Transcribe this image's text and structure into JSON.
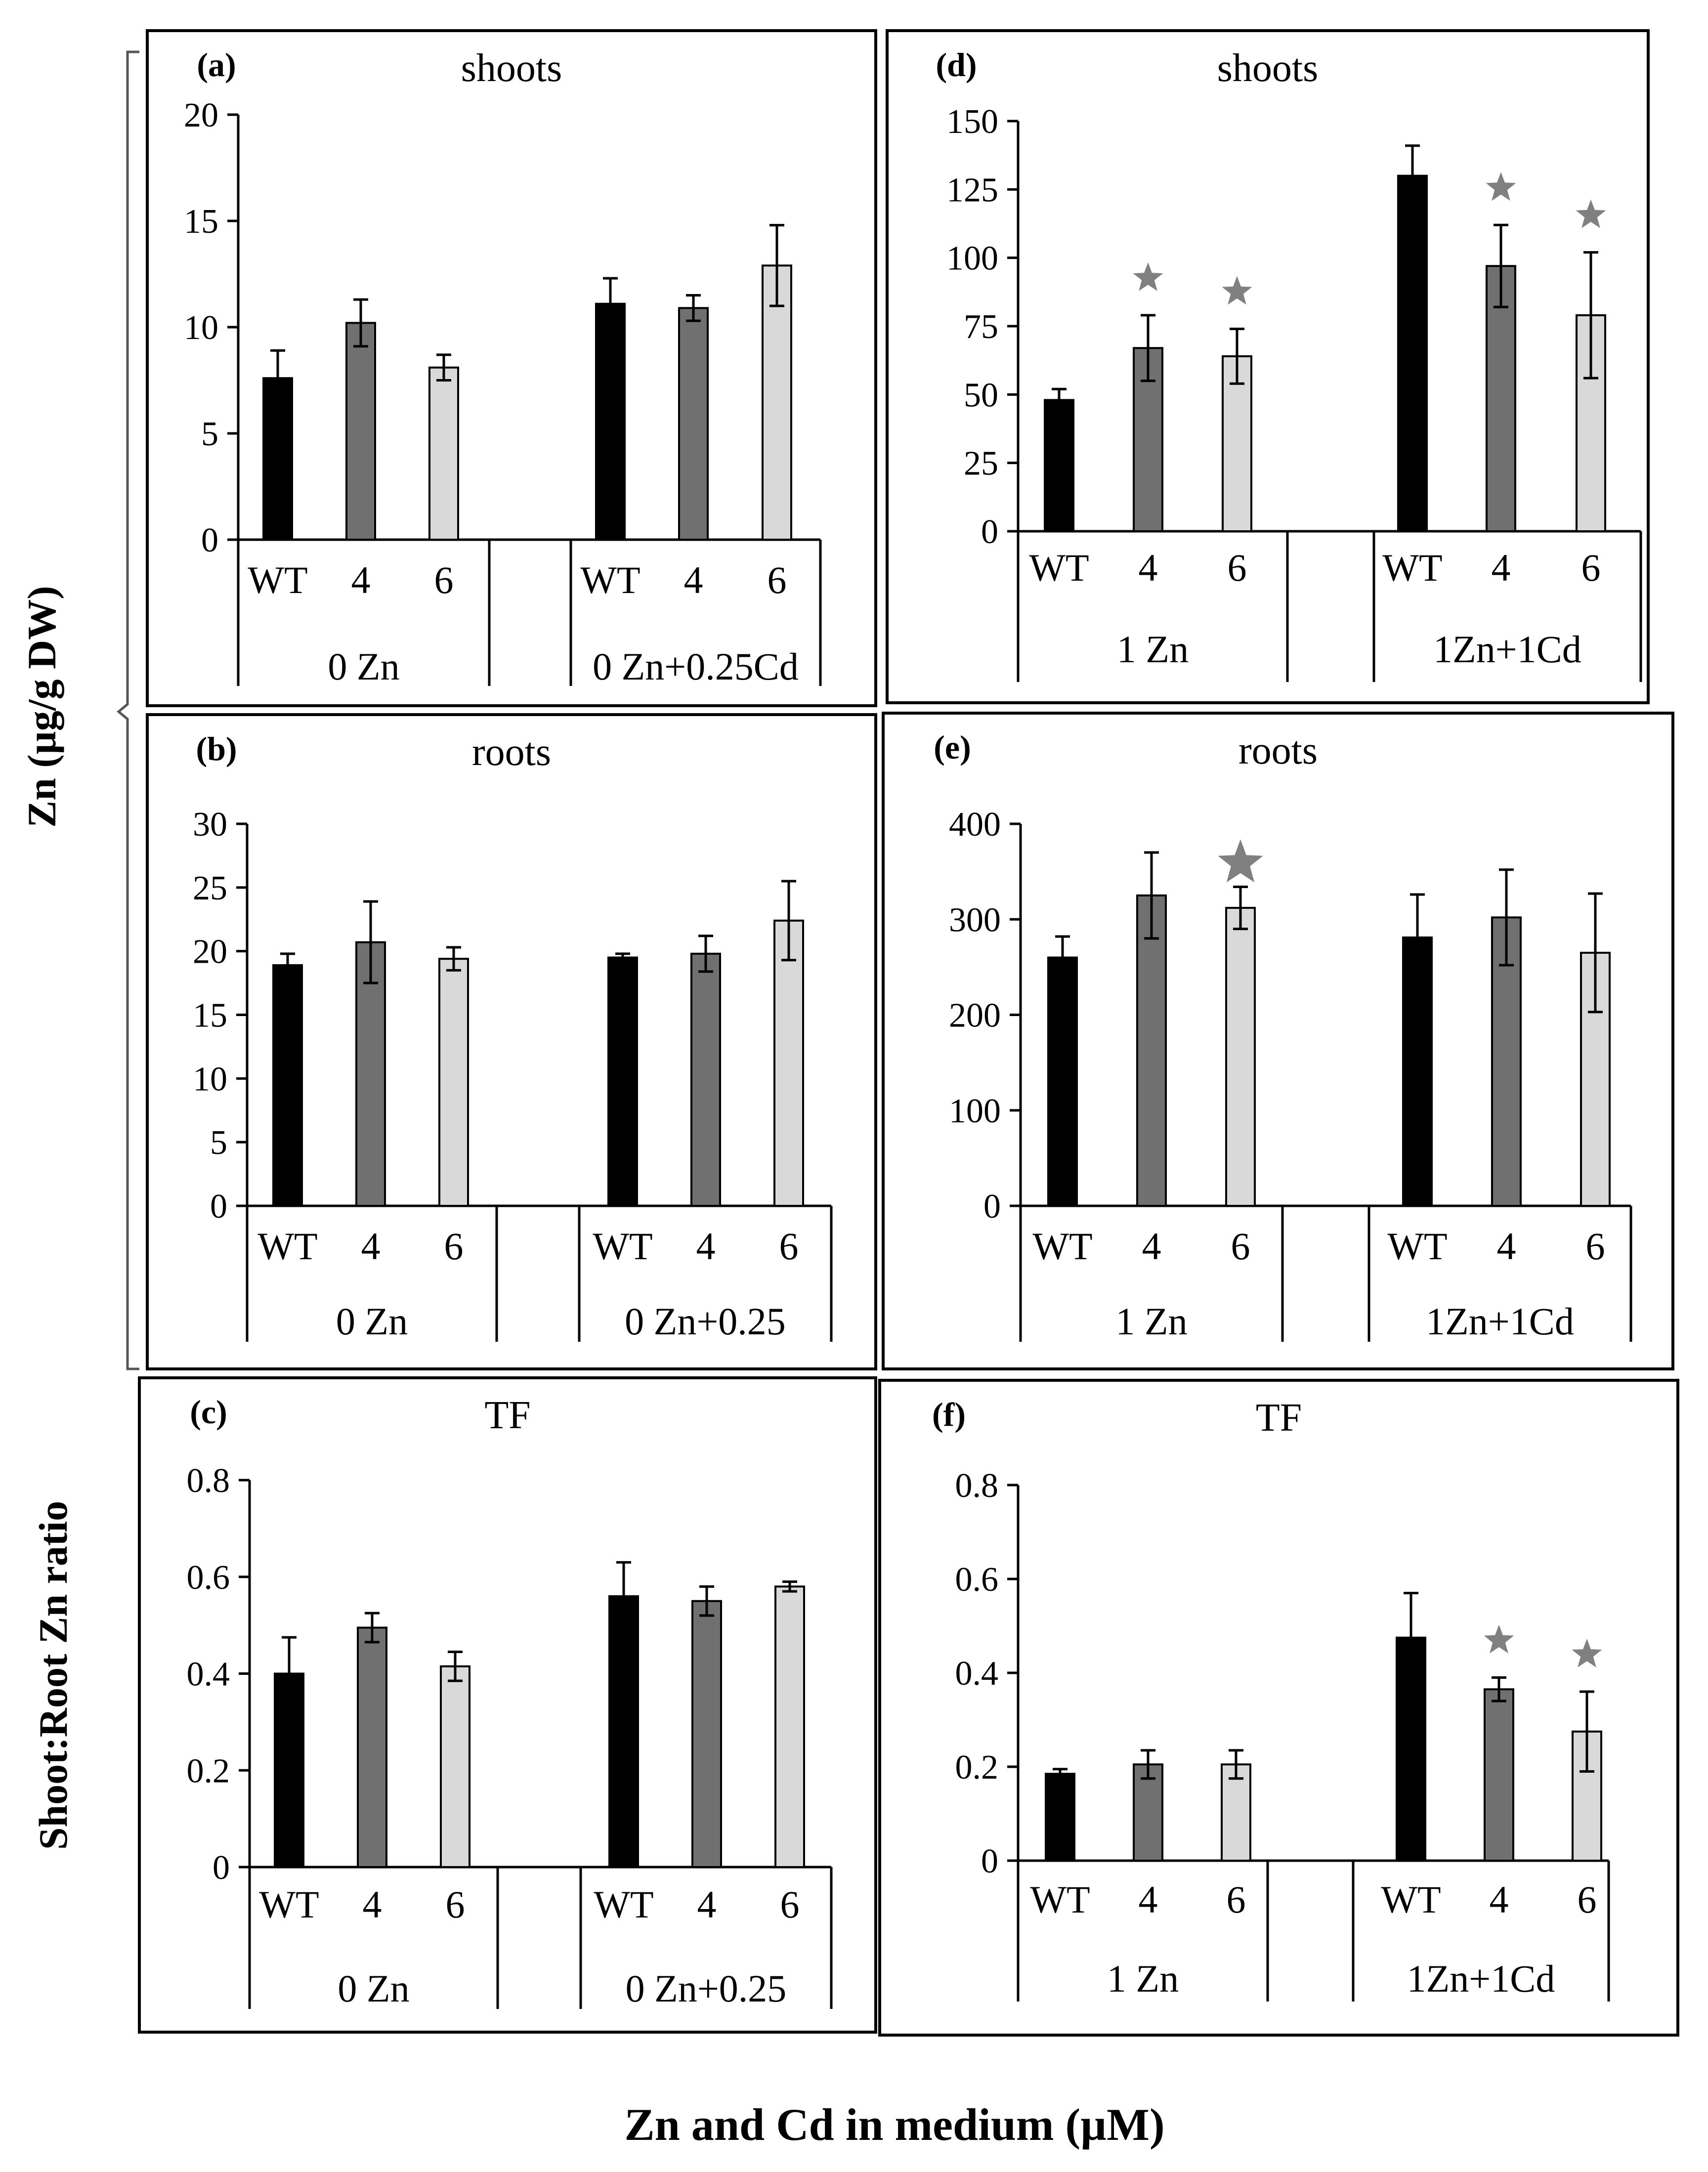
{
  "figure": {
    "y_label_top": "Zn (µg/g DW)",
    "y_label_bottom": "Shoot:Root Zn ratio",
    "x_label": "Zn and Cd in medium (µM)"
  },
  "colors": {
    "WT": "#000000",
    "4": "#707070",
    "6": "#d9d9d9",
    "star": "#808080"
  },
  "chart_data": [
    {
      "id": "a",
      "panel_label": "(a)",
      "title": "shoots",
      "type": "bar",
      "y_ticks": [
        "0",
        "5",
        "10",
        "15",
        "20"
      ],
      "ylim": [
        0,
        20
      ],
      "groups": [
        {
          "label": "0 Zn",
          "categories": [
            "WT",
            "4",
            "6"
          ],
          "values": [
            7.6,
            10.2,
            8.1
          ],
          "errors": [
            1.3,
            1.1,
            0.6
          ],
          "stars": [
            false,
            false,
            false
          ]
        },
        {
          "label": "0 Zn+0.25Cd",
          "categories": [
            "WT",
            "4",
            "6"
          ],
          "values": [
            11.1,
            10.9,
            12.9
          ],
          "errors": [
            1.2,
            0.6,
            1.9
          ],
          "stars": [
            false,
            false,
            false
          ]
        }
      ]
    },
    {
      "id": "b",
      "panel_label": "(b)",
      "title": "roots",
      "type": "bar",
      "y_ticks": [
        "0",
        "5",
        "10",
        "15",
        "20",
        "25",
        "30"
      ],
      "ylim": [
        0,
        30
      ],
      "groups": [
        {
          "label": "0 Zn",
          "categories": [
            "WT",
            "4",
            "6"
          ],
          "values": [
            18.9,
            20.7,
            19.4
          ],
          "errors": [
            0.9,
            3.2,
            0.9
          ],
          "stars": [
            false,
            false,
            false
          ]
        },
        {
          "label": "0 Zn+0.25",
          "categories": [
            "WT",
            "4",
            "6"
          ],
          "values": [
            19.5,
            19.8,
            22.4
          ],
          "errors": [
            0.3,
            1.4,
            3.1
          ],
          "stars": [
            false,
            false,
            false
          ]
        }
      ]
    },
    {
      "id": "c",
      "panel_label": "(c)",
      "title": "TF",
      "type": "bar",
      "y_ticks": [
        "0",
        "0.2",
        "0.4",
        "0.6",
        "0.8"
      ],
      "ylim": [
        0,
        0.8
      ],
      "groups": [
        {
          "label": "0 Zn",
          "categories": [
            "WT",
            "4",
            "6"
          ],
          "values": [
            0.4,
            0.495,
            0.415
          ],
          "errors": [
            0.075,
            0.03,
            0.03
          ],
          "stars": [
            false,
            false,
            false
          ]
        },
        {
          "label": "0 Zn+0.25",
          "categories": [
            "WT",
            "4",
            "6"
          ],
          "values": [
            0.56,
            0.55,
            0.58
          ],
          "errors": [
            0.07,
            0.03,
            0.01
          ],
          "stars": [
            false,
            false,
            false
          ]
        }
      ]
    },
    {
      "id": "d",
      "panel_label": "(d)",
      "title": "shoots",
      "type": "bar",
      "y_ticks": [
        "0",
        "25",
        "50",
        "75",
        "100",
        "125",
        "150"
      ],
      "ylim": [
        0,
        150
      ],
      "groups": [
        {
          "label": "1 Zn",
          "categories": [
            "WT",
            "4",
            "6"
          ],
          "values": [
            48,
            67,
            64
          ],
          "errors": [
            4,
            12,
            10
          ],
          "stars": [
            false,
            true,
            true
          ]
        },
        {
          "label": "1Zn+1Cd",
          "categories": [
            "WT",
            "4",
            "6"
          ],
          "values": [
            130,
            97,
            79
          ],
          "errors": [
            11,
            15,
            23
          ],
          "stars": [
            false,
            true,
            true
          ]
        }
      ]
    },
    {
      "id": "e",
      "panel_label": "(e)",
      "title": "roots",
      "type": "bar",
      "y_ticks": [
        "0",
        "100",
        "200",
        "300",
        "400"
      ],
      "ylim": [
        0,
        400
      ],
      "groups": [
        {
          "label": "1 Zn",
          "categories": [
            "WT",
            "4",
            "6"
          ],
          "values": [
            260,
            325,
            312
          ],
          "errors": [
            22,
            45,
            22
          ],
          "stars": [
            false,
            false,
            true
          ]
        },
        {
          "label": "1Zn+1Cd",
          "categories": [
            "WT",
            "4",
            "6"
          ],
          "values": [
            281,
            302,
            265
          ],
          "errors": [
            45,
            50,
            62
          ],
          "stars": [
            false,
            false,
            false
          ]
        }
      ]
    },
    {
      "id": "f",
      "panel_label": "(f)",
      "title": "TF",
      "type": "bar",
      "y_ticks": [
        "0",
        "0.2",
        "0.4",
        "0.6",
        "0.8"
      ],
      "ylim": [
        0,
        0.8
      ],
      "groups": [
        {
          "label": "1 Zn",
          "categories": [
            "WT",
            "4",
            "6"
          ],
          "values": [
            0.185,
            0.205,
            0.205
          ],
          "errors": [
            0.01,
            0.03,
            0.03
          ],
          "stars": [
            false,
            false,
            false
          ]
        },
        {
          "label": "1Zn+1Cd",
          "categories": [
            "WT",
            "4",
            "6"
          ],
          "values": [
            0.475,
            0.365,
            0.275
          ],
          "errors": [
            0.095,
            0.025,
            0.085
          ],
          "stars": [
            false,
            true,
            true
          ]
        }
      ]
    }
  ]
}
